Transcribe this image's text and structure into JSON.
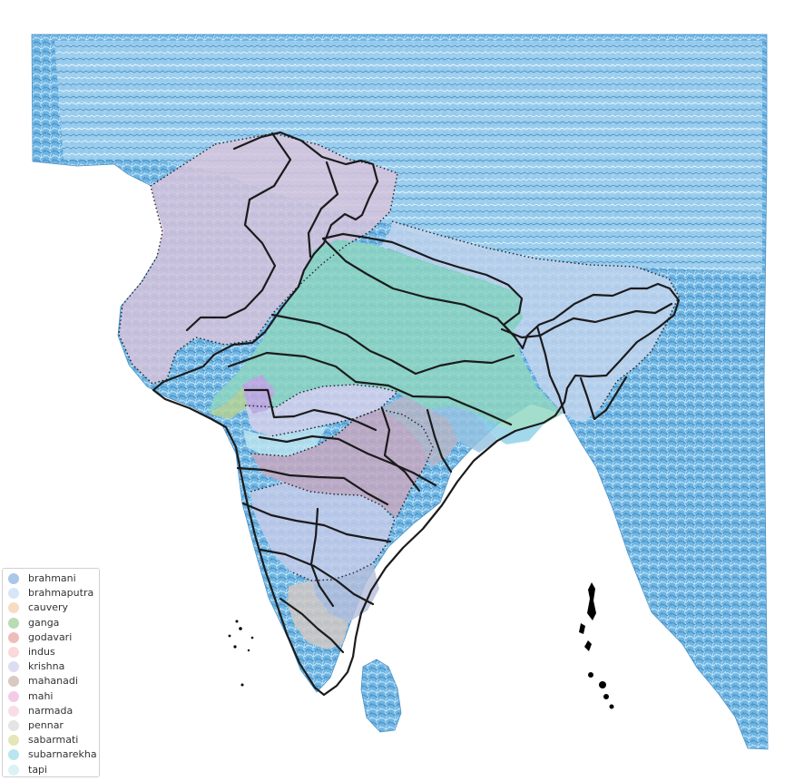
{
  "colors": {
    "background": "#ffffff",
    "river_base": "#5aa9dd",
    "river_deep": "#1f5f99",
    "border": "#1b1b1b",
    "dotted_outline": "#222222",
    "islands": "#000000"
  },
  "legend": {
    "items": [
      {
        "label": "brahmani",
        "color": "#a9c7e6"
      },
      {
        "label": "brahmaputra",
        "color": "#d7e6f6"
      },
      {
        "label": "cauvery",
        "color": "#f8dcc2"
      },
      {
        "label": "ganga",
        "color": "#b8dcb4"
      },
      {
        "label": "godavari",
        "color": "#efbcbc"
      },
      {
        "label": "indus",
        "color": "#f9d9d9"
      },
      {
        "label": "krishna",
        "color": "#dedcf2"
      },
      {
        "label": "mahanadi",
        "color": "#dac8c2"
      },
      {
        "label": "mahi",
        "color": "#f3cbe7"
      },
      {
        "label": "narmada",
        "color": "#f8dde9"
      },
      {
        "label": "pennar",
        "color": "#e4e4e4"
      },
      {
        "label": "sabarmati",
        "color": "#e3e7b8"
      },
      {
        "label": "subarnarekha",
        "color": "#b9e6ee"
      },
      {
        "label": "tapi",
        "color": "#dcf1f6"
      }
    ]
  }
}
